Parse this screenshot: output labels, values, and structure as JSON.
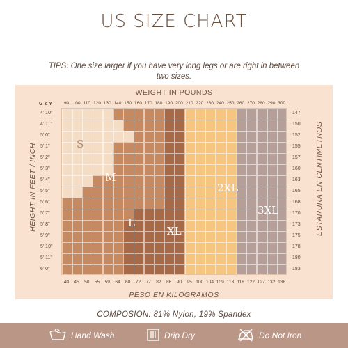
{
  "title": "US SIZE CHART",
  "tips": "TIPS: One size larger if you have very long legs or are right in between two sizes.",
  "chart": {
    "corner_label": "G & Y",
    "weight_pounds_label": "WEIGHT IN POUNDS",
    "weight_kg_label": "PESO EN KILOGRAMOS",
    "height_feet_label": "HEIGHT IN FEET / INCH",
    "height_cm_label": "ESTARURA EN CENTIMETROS",
    "pounds": [
      "90",
      "100",
      "110",
      "120",
      "130",
      "140",
      "150",
      "160",
      "170",
      "180",
      "190",
      "200",
      "210",
      "220",
      "230",
      "240",
      "250",
      "260",
      "270",
      "280",
      "290",
      "300"
    ],
    "kilograms": [
      "40",
      "45",
      "50",
      "55",
      "59",
      "64",
      "68",
      "72",
      "77",
      "82",
      "86",
      "90",
      "95",
      "100",
      "104",
      "109",
      "113",
      "118",
      "122",
      "127",
      "132",
      "136"
    ],
    "heights_ft": [
      "4' 10\"",
      "4' 11\"",
      "5' 0\"",
      "5' 1\"",
      "5' 2\"",
      "5' 3\"",
      "5' 4\"",
      "5' 5\"",
      "5' 6\"",
      "5' 7\"",
      "5' 8\"",
      "5' 9\"",
      "5' 10\"",
      "5' 11\"",
      "6' 0\""
    ],
    "heights_cm": [
      "147",
      "150",
      "152",
      "155",
      "157",
      "160",
      "163",
      "165",
      "168",
      "170",
      "173",
      "175",
      "178",
      "180",
      "183"
    ],
    "sizes": [
      {
        "name": "S",
        "color": "#f5dcc5"
      },
      {
        "name": "M",
        "color": "#c58a62"
      },
      {
        "name": "L",
        "color": "#a66a49"
      },
      {
        "name": "XL",
        "color": "#f6c57f"
      },
      {
        "name": "2XL",
        "color": "#d8b49f"
      },
      {
        "name": "3XL",
        "color": "#b59f98"
      }
    ],
    "size_start_columns": [
      [
        0,
        5,
        10,
        12,
        17
      ],
      [
        0,
        6,
        10,
        12,
        17
      ],
      [
        0,
        7,
        10,
        12,
        17
      ],
      [
        0,
        5,
        10,
        12,
        17
      ],
      [
        0,
        5,
        10,
        12,
        17
      ],
      [
        0,
        5,
        10,
        12,
        17
      ],
      [
        0,
        3,
        10,
        12,
        17
      ],
      [
        0,
        2,
        10,
        12,
        17
      ],
      [
        0,
        0,
        10,
        12,
        17
      ],
      [
        0,
        0,
        7,
        12,
        17
      ],
      [
        0,
        0,
        6,
        12,
        17
      ],
      [
        0,
        0,
        6,
        12,
        17
      ],
      [
        0,
        0,
        6,
        12,
        17
      ],
      [
        0,
        0,
        6,
        12,
        17
      ],
      [
        0,
        0,
        6,
        12,
        17
      ]
    ]
  },
  "composition": "COMPOSION: 81% Nylon, 19% Spandex",
  "care": {
    "hand_wash": "Hand Wash",
    "drip_dry": "Drip Dry",
    "do_not_iron": "Do Not Iron"
  }
}
